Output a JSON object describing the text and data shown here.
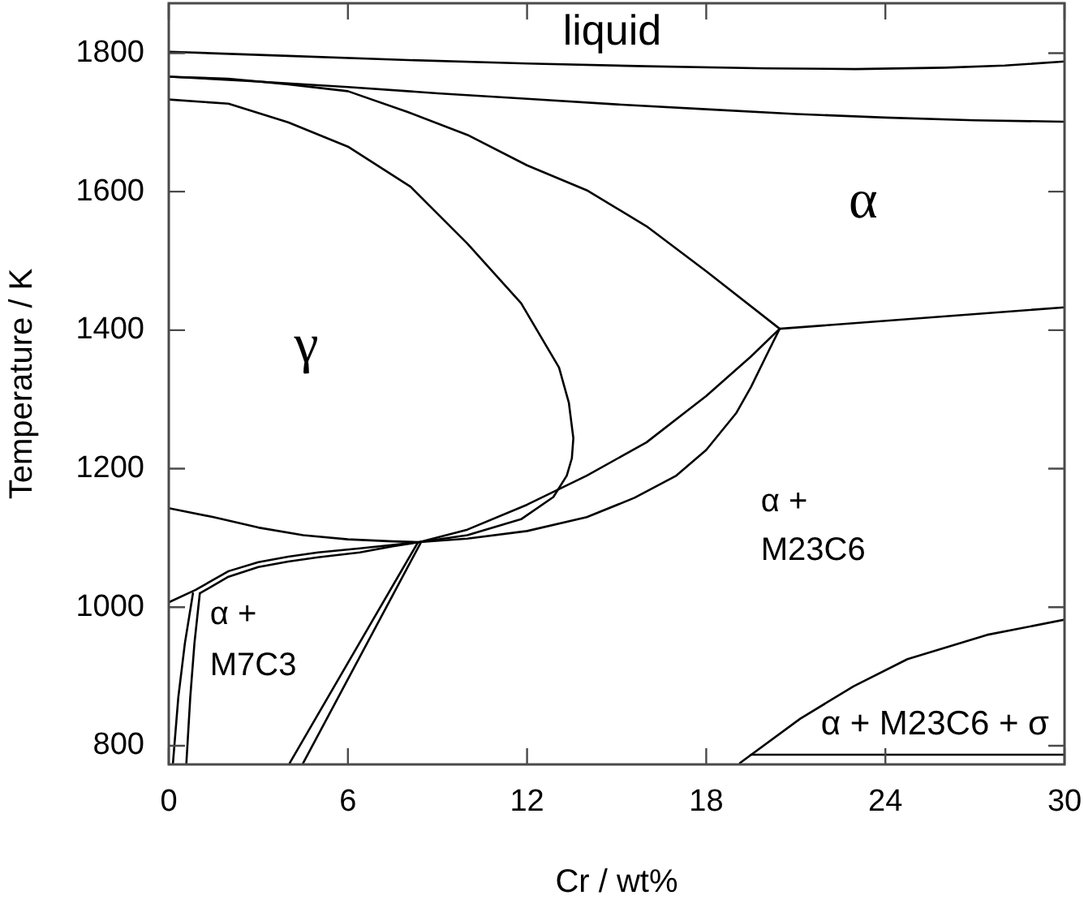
{
  "chart_data": {
    "type": "line",
    "xlabel": "Cr / wt%",
    "ylabel": "Temperature / K",
    "xlim": [
      0,
      30
    ],
    "ylim": [
      773,
      1872
    ],
    "xticks": [
      0,
      6,
      12,
      18,
      24,
      30
    ],
    "yticks": [
      800,
      1000,
      1200,
      1400,
      1600,
      1800
    ],
    "grid": false,
    "legend": false,
    "marker": "none",
    "line_style": "solid",
    "series": [
      {
        "color": "#000000",
        "x": [
          0,
          4,
          8,
          12,
          16,
          20,
          23,
          26,
          28,
          30
        ],
        "values": [
          1802,
          1796,
          1790,
          1785,
          1781,
          1778,
          1777,
          1779,
          1782,
          1788
        ]
      },
      {
        "color": "#000000",
        "x": [
          0,
          3,
          6,
          9,
          12,
          15,
          18,
          21,
          24,
          27,
          30
        ],
        "values": [
          1766,
          1759,
          1751,
          1742,
          1734,
          1726,
          1719,
          1712,
          1707,
          1703,
          1701
        ]
      },
      {
        "color": "#000000",
        "x": [
          0,
          2,
          4,
          6,
          8,
          10,
          12,
          14,
          16,
          18,
          20.46
        ],
        "values": [
          1766,
          1763,
          1755,
          1745,
          1715,
          1682,
          1638,
          1602,
          1550,
          1485,
          1402
        ]
      },
      {
        "color": "#000000",
        "x": [
          0,
          2,
          4,
          6,
          8.1,
          10,
          11.8,
          13.07,
          13.4,
          13.55,
          13.5,
          13.33,
          12.88,
          11.8,
          10,
          8.4,
          7.5,
          6,
          4.5,
          3,
          1.5,
          0
        ],
        "values": [
          1733,
          1727,
          1700,
          1665,
          1607,
          1525,
          1439,
          1346,
          1295,
          1244,
          1215,
          1190,
          1159,
          1127,
          1104,
          1094,
          1095,
          1098,
          1104,
          1115,
          1130,
          1143
        ]
      },
      {
        "color": "#000000",
        "x": [
          0,
          0.9,
          2,
          3,
          4,
          5,
          6.4,
          7.5,
          8.4,
          10,
          12,
          14,
          16,
          18,
          19.5,
          20.46,
          30
        ],
        "values": [
          1007,
          1025,
          1052,
          1065,
          1073,
          1079,
          1085,
          1090,
          1094,
          1112,
          1148,
          1190,
          1238,
          1305,
          1362,
          1402,
          1433
        ]
      },
      {
        "color": "#000000",
        "x": [
          1.04,
          2,
          3,
          4,
          5,
          6.4,
          7.5,
          8.4,
          10,
          12,
          14,
          15.6,
          17,
          18,
          19,
          19.5,
          20,
          20.46
        ],
        "values": [
          1020,
          1044,
          1058,
          1066,
          1072,
          1079,
          1088,
          1094,
          1099,
          1110,
          1130,
          1158,
          1190,
          1227,
          1280,
          1318,
          1362,
          1402
        ]
      },
      {
        "color": "#000000",
        "x": [
          0.81,
          0.54,
          0.32,
          0.14
        ],
        "values": [
          1020,
          948,
          870,
          775
        ]
      },
      {
        "color": "#000000",
        "x": [
          1.04,
          0.86,
          0.72,
          0.59
        ],
        "values": [
          1020,
          948,
          870,
          775
        ]
      },
      {
        "color": "#000000",
        "x": [
          4.05,
          8.35
        ],
        "values": [
          775,
          1094
        ]
      },
      {
        "color": "#000000",
        "x": [
          4.5,
          8.45
        ],
        "values": [
          775,
          1094
        ]
      },
      {
        "color": "#000000",
        "x": [
          19.13,
          21.15,
          22.94,
          24.74,
          27.4,
          30
        ],
        "values": [
          775,
          839,
          886,
          925,
          960,
          982
        ]
      },
      {
        "color": "#000000",
        "x": [
          19.5,
          30
        ],
        "values": [
          787,
          787
        ]
      }
    ],
    "annotations": [
      "liquid",
      "α",
      "γ",
      "α +\nM23C6",
      "α +\nM7C3",
      "α + M23C6 + σ"
    ]
  }
}
